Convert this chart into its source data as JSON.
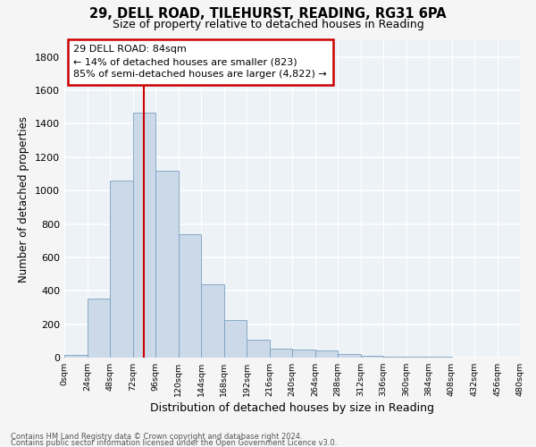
{
  "title": "29, DELL ROAD, TILEHURST, READING, RG31 6PA",
  "subtitle": "Size of property relative to detached houses in Reading",
  "xlabel": "Distribution of detached houses by size in Reading",
  "ylabel": "Number of detached properties",
  "bar_color": "#ccd9e8",
  "bar_edge_color": "#7aa0c0",
  "annotation_line_color": "#cc0000",
  "annotation_box_color": "#cc0000",
  "annotation_line1": "29 DELL ROAD: 84sqm",
  "annotation_line2": "← 14% of detached houses are smaller (823)",
  "annotation_line3": "85% of semi-detached houses are larger (4,822) →",
  "property_size": 84,
  "footnote1": "Contains HM Land Registry data © Crown copyright and database right 2024.",
  "footnote2": "Contains public sector information licensed under the Open Government Licence v3.0.",
  "bin_edges": [
    0,
    24,
    48,
    72,
    96,
    120,
    144,
    168,
    192,
    216,
    240,
    264,
    288,
    312,
    336,
    360,
    384,
    408,
    432,
    456,
    480
  ],
  "bin_labels": [
    "0sqm",
    "24sqm",
    "48sqm",
    "72sqm",
    "96sqm",
    "120sqm",
    "144sqm",
    "168sqm",
    "192sqm",
    "216sqm",
    "240sqm",
    "264sqm",
    "288sqm",
    "312sqm",
    "336sqm",
    "360sqm",
    "384sqm",
    "408sqm",
    "432sqm",
    "456sqm",
    "480sqm"
  ],
  "counts": [
    18,
    355,
    1060,
    1465,
    1120,
    740,
    440,
    225,
    105,
    55,
    50,
    45,
    20,
    12,
    8,
    4,
    3,
    2,
    1,
    1
  ],
  "ylim": [
    0,
    1900
  ],
  "yticks": [
    0,
    200,
    400,
    600,
    800,
    1000,
    1200,
    1400,
    1600,
    1800
  ],
  "bg_color": "#edf2f7",
  "grid_color": "#ffffff",
  "fig_bg": "#f5f5f5"
}
